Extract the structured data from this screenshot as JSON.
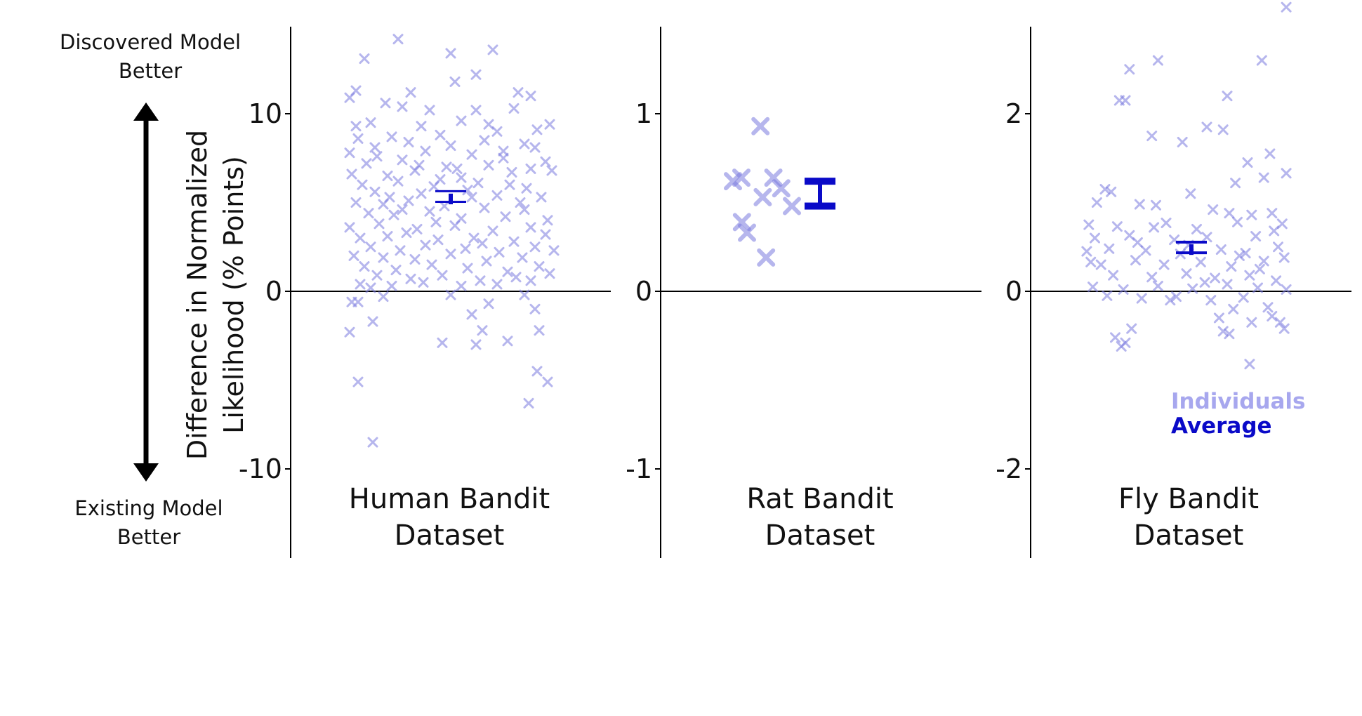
{
  "figure": {
    "left_annotation_top": [
      "Discovered Model",
      "Better"
    ],
    "left_annotation_bottom": [
      "Existing Model",
      "Better"
    ],
    "ylabel_lines": [
      "Difference in Normalized",
      "Likelihood (% Points)"
    ],
    "legend": {
      "individuals": "Individuals",
      "average": "Average"
    },
    "colors": {
      "individuals": "#7b7be0",
      "average": "#0a0ac8",
      "axis": "#000000"
    }
  },
  "chart_data": [
    {
      "type": "scatter",
      "title": "Human Bandit Dataset",
      "title_lines": [
        "Human Bandit",
        "Dataset"
      ],
      "yticks": [
        -10,
        0,
        10
      ],
      "ytick_labels": [
        "-10",
        "0",
        "10"
      ],
      "ylim": [
        -15,
        15
      ],
      "average": {
        "value": 5.2,
        "sem": 0.3
      },
      "individuals": [
        {
          "x": 0.02,
          "y": 10.9
        },
        {
          "x": 0.05,
          "y": 11.3
        },
        {
          "x": 0.09,
          "y": 13.1
        },
        {
          "x": 0.25,
          "y": 14.2
        },
        {
          "x": 0.5,
          "y": 13.4
        },
        {
          "x": 0.7,
          "y": 13.6
        },
        {
          "x": 0.62,
          "y": 12.2
        },
        {
          "x": 0.52,
          "y": 11.8
        },
        {
          "x": 0.31,
          "y": 11.2
        },
        {
          "x": 0.19,
          "y": 10.6
        },
        {
          "x": 0.82,
          "y": 11.2
        },
        {
          "x": 0.88,
          "y": 11.0
        },
        {
          "x": 0.4,
          "y": 10.2
        },
        {
          "x": 0.62,
          "y": 10.2
        },
        {
          "x": 0.8,
          "y": 10.3
        },
        {
          "x": 0.27,
          "y": 10.4
        },
        {
          "x": 0.97,
          "y": 9.4
        },
        {
          "x": 0.12,
          "y": 9.5
        },
        {
          "x": 0.55,
          "y": 9.6
        },
        {
          "x": 0.91,
          "y": 9.1
        },
        {
          "x": 0.36,
          "y": 9.3
        },
        {
          "x": 0.72,
          "y": 9.0
        },
        {
          "x": 0.06,
          "y": 8.6
        },
        {
          "x": 0.45,
          "y": 8.8
        },
        {
          "x": 0.66,
          "y": 8.5
        },
        {
          "x": 0.85,
          "y": 8.3
        },
        {
          "x": 0.22,
          "y": 8.7
        },
        {
          "x": 0.3,
          "y": 8.4
        },
        {
          "x": 0.5,
          "y": 8.2
        },
        {
          "x": 0.02,
          "y": 7.8
        },
        {
          "x": 0.15,
          "y": 7.6
        },
        {
          "x": 0.38,
          "y": 7.9
        },
        {
          "x": 0.6,
          "y": 7.7
        },
        {
          "x": 0.75,
          "y": 7.5
        },
        {
          "x": 0.95,
          "y": 7.3
        },
        {
          "x": 0.1,
          "y": 7.2
        },
        {
          "x": 0.27,
          "y": 7.4
        },
        {
          "x": 0.48,
          "y": 7.0
        },
        {
          "x": 0.68,
          "y": 7.1
        },
        {
          "x": 0.88,
          "y": 6.9
        },
        {
          "x": 0.03,
          "y": 6.6
        },
        {
          "x": 0.2,
          "y": 6.5
        },
        {
          "x": 0.33,
          "y": 6.8
        },
        {
          "x": 0.55,
          "y": 6.4
        },
        {
          "x": 0.79,
          "y": 6.7
        },
        {
          "x": 0.98,
          "y": 6.8
        },
        {
          "x": 0.08,
          "y": 6.0
        },
        {
          "x": 0.25,
          "y": 6.2
        },
        {
          "x": 0.42,
          "y": 5.9
        },
        {
          "x": 0.63,
          "y": 6.1
        },
        {
          "x": 0.86,
          "y": 5.8
        },
        {
          "x": 0.14,
          "y": 5.6
        },
        {
          "x": 0.36,
          "y": 5.5
        },
        {
          "x": 0.58,
          "y": 5.7
        },
        {
          "x": 0.72,
          "y": 5.4
        },
        {
          "x": 0.93,
          "y": 5.3
        },
        {
          "x": 0.05,
          "y": 5.0
        },
        {
          "x": 0.18,
          "y": 4.9
        },
        {
          "x": 0.3,
          "y": 5.1
        },
        {
          "x": 0.47,
          "y": 4.8
        },
        {
          "x": 0.66,
          "y": 4.7
        },
        {
          "x": 0.83,
          "y": 5.0
        },
        {
          "x": 0.11,
          "y": 4.4
        },
        {
          "x": 0.23,
          "y": 4.3
        },
        {
          "x": 0.4,
          "y": 4.5
        },
        {
          "x": 0.55,
          "y": 4.1
        },
        {
          "x": 0.76,
          "y": 4.2
        },
        {
          "x": 0.96,
          "y": 4.0
        },
        {
          "x": 0.02,
          "y": 3.6
        },
        {
          "x": 0.16,
          "y": 3.8
        },
        {
          "x": 0.34,
          "y": 3.5
        },
        {
          "x": 0.52,
          "y": 3.7
        },
        {
          "x": 0.7,
          "y": 3.4
        },
        {
          "x": 0.88,
          "y": 3.6
        },
        {
          "x": 0.07,
          "y": 3.0
        },
        {
          "x": 0.2,
          "y": 3.1
        },
        {
          "x": 0.29,
          "y": 3.3
        },
        {
          "x": 0.44,
          "y": 2.9
        },
        {
          "x": 0.61,
          "y": 3.0
        },
        {
          "x": 0.8,
          "y": 2.8
        },
        {
          "x": 0.95,
          "y": 3.2
        },
        {
          "x": 0.12,
          "y": 2.5
        },
        {
          "x": 0.26,
          "y": 2.3
        },
        {
          "x": 0.38,
          "y": 2.6
        },
        {
          "x": 0.57,
          "y": 2.4
        },
        {
          "x": 0.73,
          "y": 2.2
        },
        {
          "x": 0.9,
          "y": 2.5
        },
        {
          "x": 0.04,
          "y": 2.0
        },
        {
          "x": 0.18,
          "y": 1.9
        },
        {
          "x": 0.33,
          "y": 1.8
        },
        {
          "x": 0.5,
          "y": 2.1
        },
        {
          "x": 0.67,
          "y": 1.7
        },
        {
          "x": 0.84,
          "y": 1.9
        },
        {
          "x": 0.09,
          "y": 1.4
        },
        {
          "x": 0.24,
          "y": 1.2
        },
        {
          "x": 0.41,
          "y": 1.5
        },
        {
          "x": 0.58,
          "y": 1.3
        },
        {
          "x": 0.77,
          "y": 1.1
        },
        {
          "x": 0.92,
          "y": 1.4
        },
        {
          "x": 0.15,
          "y": 0.9
        },
        {
          "x": 0.31,
          "y": 0.7
        },
        {
          "x": 0.46,
          "y": 0.9
        },
        {
          "x": 0.64,
          "y": 0.6
        },
        {
          "x": 0.81,
          "y": 0.8
        },
        {
          "x": 0.97,
          "y": 1.0
        },
        {
          "x": 0.07,
          "y": 0.4
        },
        {
          "x": 0.22,
          "y": 0.3
        },
        {
          "x": 0.37,
          "y": 0.5
        },
        {
          "x": 0.55,
          "y": 0.3
        },
        {
          "x": 0.72,
          "y": 0.4
        },
        {
          "x": 0.88,
          "y": 0.6
        },
        {
          "x": 0.45,
          "y": 6.3
        },
        {
          "x": 0.14,
          "y": 8.1
        },
        {
          "x": 0.35,
          "y": 7.1
        },
        {
          "x": 0.6,
          "y": 5.3
        },
        {
          "x": 0.78,
          "y": 6.0
        },
        {
          "x": 0.27,
          "y": 4.6
        },
        {
          "x": 0.05,
          "y": 9.3
        },
        {
          "x": 0.68,
          "y": 9.4
        },
        {
          "x": 0.9,
          "y": 8.1
        },
        {
          "x": 0.12,
          "y": 0.2
        },
        {
          "x": 0.43,
          "y": 3.9
        },
        {
          "x": 0.65,
          "y": 2.7
        },
        {
          "x": 0.85,
          "y": 4.6
        },
        {
          "x": 0.21,
          "y": 5.3
        },
        {
          "x": 0.53,
          "y": 6.9
        },
        {
          "x": 0.75,
          "y": 7.9
        },
        {
          "x": 0.99,
          "y": 2.3
        },
        {
          "x": 0.03,
          "y": -0.6
        },
        {
          "x": 0.06,
          "y": -0.6
        },
        {
          "x": 0.18,
          "y": -0.3
        },
        {
          "x": 0.5,
          "y": -0.2
        },
        {
          "x": 0.85,
          "y": -0.2
        },
        {
          "x": 0.9,
          "y": -1.0
        },
        {
          "x": 0.68,
          "y": -0.7
        },
        {
          "x": 0.6,
          "y": -1.3
        },
        {
          "x": 0.13,
          "y": -1.7
        },
        {
          "x": 0.02,
          "y": -2.3
        },
        {
          "x": 0.46,
          "y": -2.9
        },
        {
          "x": 0.65,
          "y": -2.2
        },
        {
          "x": 0.77,
          "y": -2.8
        },
        {
          "x": 0.92,
          "y": -2.2
        },
        {
          "x": 0.62,
          "y": -3.0
        },
        {
          "x": 0.91,
          "y": -4.5
        },
        {
          "x": 0.96,
          "y": -5.1
        },
        {
          "x": 0.06,
          "y": -5.1
        },
        {
          "x": 0.87,
          "y": -6.3
        },
        {
          "x": 0.13,
          "y": -8.5
        }
      ]
    },
    {
      "type": "scatter",
      "title": "Rat Bandit Dataset",
      "title_lines": [
        "Rat Bandit",
        "Dataset"
      ],
      "yticks": [
        -1,
        0,
        1
      ],
      "ytick_labels": [
        "-1",
        "0",
        "1"
      ],
      "ylim": [
        -1.5,
        1.5
      ],
      "average": {
        "value": 0.55,
        "sem": 0.07
      },
      "individuals": [
        {
          "x": 0.05,
          "y": 0.62
        },
        {
          "x": 0.2,
          "y": 0.64
        },
        {
          "x": 0.21,
          "y": 0.39
        },
        {
          "x": 0.3,
          "y": 0.33
        },
        {
          "x": 0.54,
          "y": 0.93
        },
        {
          "x": 0.58,
          "y": 0.53
        },
        {
          "x": 0.64,
          "y": 0.19
        },
        {
          "x": 0.77,
          "y": 0.64
        },
        {
          "x": 0.91,
          "y": 0.58
        },
        {
          "x": 1.1,
          "y": 0.48
        }
      ]
    },
    {
      "type": "scatter",
      "title": "Fly Bandit Dataset",
      "title_lines": [
        "Fly Bandit",
        "Dataset"
      ],
      "yticks": [
        -2,
        0,
        2
      ],
      "ytick_labels": [
        "-2",
        "0",
        "2"
      ],
      "ylim": [
        -3.2,
        3.2
      ],
      "average": {
        "value": 0.47,
        "sem": 0.06
      },
      "individuals": [
        {
          "x": 0.99,
          "y": 3.2
        },
        {
          "x": 0.36,
          "y": 2.6
        },
        {
          "x": 0.22,
          "y": 2.5
        },
        {
          "x": 0.87,
          "y": 2.6
        },
        {
          "x": 0.17,
          "y": 2.15
        },
        {
          "x": 0.2,
          "y": 2.15
        },
        {
          "x": 0.7,
          "y": 2.2
        },
        {
          "x": 0.6,
          "y": 1.85
        },
        {
          "x": 0.33,
          "y": 1.75
        },
        {
          "x": 0.48,
          "y": 1.68
        },
        {
          "x": 0.68,
          "y": 1.82
        },
        {
          "x": 0.8,
          "y": 1.45
        },
        {
          "x": 0.91,
          "y": 1.55
        },
        {
          "x": 0.99,
          "y": 1.33
        },
        {
          "x": 0.74,
          "y": 1.22
        },
        {
          "x": 0.88,
          "y": 1.28
        },
        {
          "x": 0.1,
          "y": 1.15
        },
        {
          "x": 0.13,
          "y": 1.12
        },
        {
          "x": 0.52,
          "y": 1.1
        },
        {
          "x": 0.06,
          "y": 1.0
        },
        {
          "x": 0.27,
          "y": 0.98
        },
        {
          "x": 0.35,
          "y": 0.97
        },
        {
          "x": 0.63,
          "y": 0.92
        },
        {
          "x": 0.71,
          "y": 0.88
        },
        {
          "x": 0.82,
          "y": 0.86
        },
        {
          "x": 0.92,
          "y": 0.88
        },
        {
          "x": 0.02,
          "y": 0.75
        },
        {
          "x": 0.16,
          "y": 0.73
        },
        {
          "x": 0.4,
          "y": 0.77
        },
        {
          "x": 0.55,
          "y": 0.7
        },
        {
          "x": 0.75,
          "y": 0.78
        },
        {
          "x": 0.97,
          "y": 0.76
        },
        {
          "x": 0.05,
          "y": 0.6
        },
        {
          "x": 0.22,
          "y": 0.63
        },
        {
          "x": 0.44,
          "y": 0.58
        },
        {
          "x": 0.6,
          "y": 0.61
        },
        {
          "x": 0.84,
          "y": 0.62
        },
        {
          "x": 0.93,
          "y": 0.68
        },
        {
          "x": 0.01,
          "y": 0.45
        },
        {
          "x": 0.12,
          "y": 0.48
        },
        {
          "x": 0.3,
          "y": 0.46
        },
        {
          "x": 0.47,
          "y": 0.42
        },
        {
          "x": 0.67,
          "y": 0.47
        },
        {
          "x": 0.79,
          "y": 0.43
        },
        {
          "x": 0.95,
          "y": 0.5
        },
        {
          "x": 0.03,
          "y": 0.33
        },
        {
          "x": 0.08,
          "y": 0.3
        },
        {
          "x": 0.25,
          "y": 0.35
        },
        {
          "x": 0.39,
          "y": 0.3
        },
        {
          "x": 0.57,
          "y": 0.33
        },
        {
          "x": 0.72,
          "y": 0.28
        },
        {
          "x": 0.88,
          "y": 0.34
        },
        {
          "x": 0.98,
          "y": 0.38
        },
        {
          "x": 0.14,
          "y": 0.18
        },
        {
          "x": 0.33,
          "y": 0.16
        },
        {
          "x": 0.5,
          "y": 0.2
        },
        {
          "x": 0.64,
          "y": 0.15
        },
        {
          "x": 0.81,
          "y": 0.18
        },
        {
          "x": 0.94,
          "y": 0.12
        },
        {
          "x": 0.04,
          "y": 0.05
        },
        {
          "x": 0.19,
          "y": 0.02
        },
        {
          "x": 0.36,
          "y": 0.06
        },
        {
          "x": 0.53,
          "y": 0.03
        },
        {
          "x": 0.7,
          "y": 0.08
        },
        {
          "x": 0.85,
          "y": 0.04
        },
        {
          "x": 0.99,
          "y": 0.02
        },
        {
          "x": 0.11,
          "y": -0.05
        },
        {
          "x": 0.28,
          "y": -0.08
        },
        {
          "x": 0.45,
          "y": -0.06
        },
        {
          "x": 0.62,
          "y": -0.1
        },
        {
          "x": 0.78,
          "y": -0.07
        },
        {
          "x": 0.9,
          "y": -0.18
        },
        {
          "x": 0.42,
          "y": -0.1
        },
        {
          "x": 0.73,
          "y": -0.2
        },
        {
          "x": 0.92,
          "y": -0.28
        },
        {
          "x": 0.66,
          "y": -0.3
        },
        {
          "x": 0.96,
          "y": -0.35
        },
        {
          "x": 0.82,
          "y": -0.35
        },
        {
          "x": 0.98,
          "y": -0.42
        },
        {
          "x": 0.68,
          "y": -0.45
        },
        {
          "x": 0.71,
          "y": -0.48
        },
        {
          "x": 0.23,
          "y": -0.42
        },
        {
          "x": 0.15,
          "y": -0.52
        },
        {
          "x": 0.2,
          "y": -0.58
        },
        {
          "x": 0.18,
          "y": -0.62
        },
        {
          "x": 0.81,
          "y": -0.82
        },
        {
          "x": 0.26,
          "y": 0.55
        },
        {
          "x": 0.51,
          "y": 0.52
        },
        {
          "x": 0.76,
          "y": 0.4
        },
        {
          "x": 0.34,
          "y": 0.72
        },
        {
          "x": 0.59,
          "y": 0.1
        },
        {
          "x": 0.86,
          "y": 0.25
        }
      ]
    }
  ]
}
